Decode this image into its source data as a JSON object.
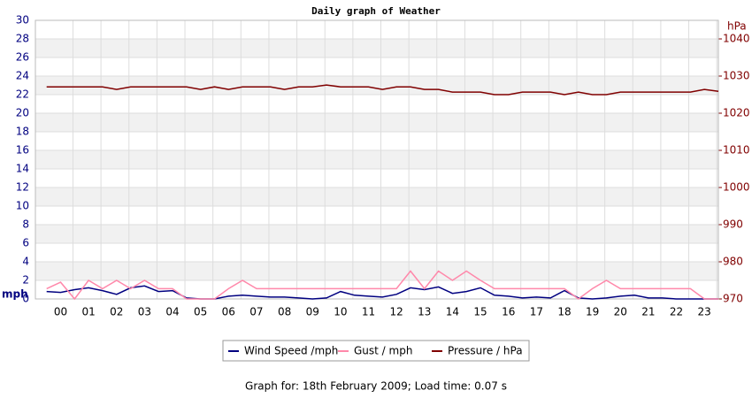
{
  "chart_data": {
    "type": "line",
    "title": "Daily graph of Weather",
    "y_label": "mph",
    "y2_label": "hPa",
    "x": [
      -0.5,
      0,
      0.5,
      1,
      1.5,
      2,
      2.5,
      3,
      3.5,
      4,
      4.5,
      5,
      5.5,
      6,
      6.5,
      7,
      7.5,
      8,
      8.5,
      9,
      9.5,
      10,
      10.5,
      11,
      11.5,
      12,
      12.5,
      13,
      13.5,
      14,
      14.5,
      15,
      15.5,
      16,
      16.5,
      17,
      17.5,
      18,
      18.5,
      19,
      19.5,
      20,
      20.5,
      21,
      21.5,
      22,
      22.5,
      23,
      23.5
    ],
    "xlim": [
      -0.9,
      23.5
    ],
    "xticks": [
      {
        "value": 0,
        "label": "00"
      },
      {
        "value": 1,
        "label": "01"
      },
      {
        "value": 2,
        "label": "02"
      },
      {
        "value": 3,
        "label": "03"
      },
      {
        "value": 4,
        "label": "04"
      },
      {
        "value": 5,
        "label": "05"
      },
      {
        "value": 6,
        "label": "06"
      },
      {
        "value": 7,
        "label": "07"
      },
      {
        "value": 8,
        "label": "08"
      },
      {
        "value": 9,
        "label": "09"
      },
      10,
      11,
      12,
      13,
      14,
      15,
      16,
      17,
      18,
      19,
      20,
      21,
      22,
      23
    ],
    "ylim": [
      0,
      30
    ],
    "yticks": [
      0,
      2,
      4,
      6,
      8,
      10,
      12,
      14,
      16,
      18,
      20,
      22,
      24,
      26,
      28,
      30
    ],
    "y2lim": [
      970,
      1045
    ],
    "y2ticks": [
      970,
      980,
      990,
      1000,
      1010,
      1020,
      1030,
      1040
    ],
    "grid": true,
    "series": [
      {
        "name": "Wind Speed /mph",
        "color": "#000080",
        "values": [
          0.8,
          0.7,
          1.0,
          1.2,
          0.9,
          0.5,
          1.2,
          1.4,
          0.8,
          0.9,
          0.1,
          0,
          0,
          0.3,
          0.4,
          0.3,
          0.2,
          0.2,
          0.1,
          0,
          0.1,
          0.8,
          0.4,
          0.3,
          0.2,
          0.5,
          1.2,
          1.0,
          1.3,
          0.6,
          0.8,
          1.2,
          0.4,
          0.3,
          0.1,
          0.2,
          0.1,
          0.9,
          0.1,
          0,
          0.1,
          0.3,
          0.4,
          0.1,
          0.1,
          0,
          0,
          0,
          0
        ]
      },
      {
        "name": "Gust / mph",
        "color": "#ff88aa",
        "values": [
          1.1,
          1.8,
          0,
          2,
          1.1,
          2,
          1.1,
          2,
          1.1,
          1.1,
          0,
          0,
          0,
          1.1,
          2,
          1.1,
          1.1,
          1.1,
          1.1,
          1.1,
          1.1,
          1.1,
          1.1,
          1.1,
          1.1,
          1.1,
          3,
          1.1,
          3,
          2,
          3,
          2,
          1.1,
          1.1,
          1.1,
          1.1,
          1.1,
          1.1,
          0,
          1.1,
          2,
          1.1,
          1.1,
          1.1,
          1.1,
          1.1,
          1.1,
          0,
          0
        ]
      },
      {
        "name": "Pressure / hPa",
        "color": "#800000",
        "axis": "y2",
        "values": [
          1027.1,
          1027.1,
          1027.1,
          1027.1,
          1027.1,
          1026.4,
          1027.1,
          1027.1,
          1027.1,
          1027.1,
          1027.1,
          1026.4,
          1027.1,
          1026.4,
          1027.1,
          1027.1,
          1027.1,
          1026.4,
          1027.1,
          1027.1,
          1027.6,
          1027.1,
          1027.1,
          1027.1,
          1026.4,
          1027.1,
          1027.1,
          1026.4,
          1026.4,
          1025.7,
          1025.7,
          1025.7,
          1025.0,
          1025.0,
          1025.7,
          1025.7,
          1025.7,
          1025.0,
          1025.7,
          1025.0,
          1025.0,
          1025.7,
          1025.7,
          1025.7,
          1025.7,
          1025.7,
          1025.7,
          1026.4,
          1025.9
        ]
      }
    ],
    "footer": "Graph for: 18th February 2009; Load time: 0.07 s"
  }
}
